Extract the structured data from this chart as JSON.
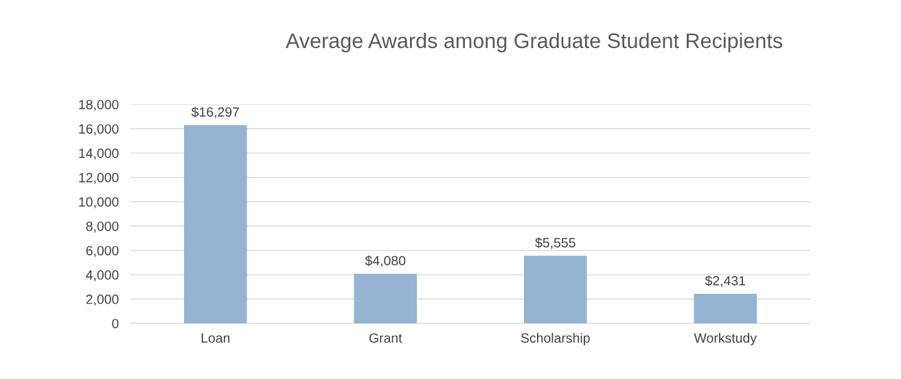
{
  "chart_data": {
    "type": "bar",
    "title": "Average Awards among Graduate Student Recipients",
    "categories": [
      "Loan",
      "Grant",
      "Scholarship",
      "Workstudy"
    ],
    "values": [
      16297,
      4080,
      5555,
      2431
    ],
    "value_labels": [
      "$16,297",
      "$4,080",
      "$5,555",
      "$2,431"
    ],
    "color": "#95b3d2",
    "ylim": [
      0,
      18000
    ],
    "yticks": [
      {
        "value": 0,
        "label": "0"
      },
      {
        "value": 2000,
        "label": "2,000"
      },
      {
        "value": 4000,
        "label": "4,000"
      },
      {
        "value": 6000,
        "label": "6,000"
      },
      {
        "value": 8000,
        "label": "8,000"
      },
      {
        "value": 10000,
        "label": "10,000"
      },
      {
        "value": 12000,
        "label": "12,000"
      },
      {
        "value": 14000,
        "label": "14,000"
      },
      {
        "value": 16000,
        "label": "16,000"
      },
      {
        "value": 18000,
        "label": "18,000"
      }
    ],
    "grid": "y",
    "legend": false
  }
}
